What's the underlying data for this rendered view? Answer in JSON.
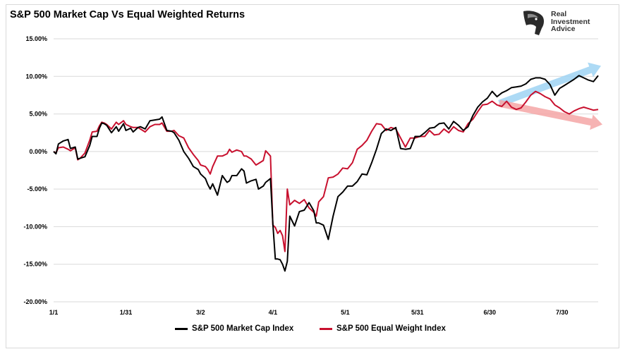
{
  "title": "S&P 500 Market Cap Vs Equal Weighted Returns",
  "logo": {
    "icon": "eagle-head-icon",
    "lines": [
      "Real",
      "Investment",
      "Advice"
    ]
  },
  "colors": {
    "market_cap": "#000000",
    "equal_weight": "#c8102e",
    "up_arrow": "#9fd4f3",
    "down_arrow": "#f4a6a6",
    "grid": "#d9d9d9"
  },
  "chart_data": {
    "type": "line",
    "title": "S&P 500 Market Cap Vs Equal Weighted Returns",
    "ylim": [
      -20,
      15
    ],
    "y_ticks": [
      15,
      10,
      5,
      0,
      -5,
      -10,
      -15,
      -20
    ],
    "y_tick_labels": [
      "15.00%",
      "10.00%",
      "5.00%",
      "0.00%",
      "-5.00%",
      "-10.00%",
      "-15.00%",
      "-20.00%"
    ],
    "x_range": [
      0,
      226
    ],
    "x_ticks": [
      {
        "label": "1/1",
        "day": 0
      },
      {
        "label": "1/31",
        "day": 30
      },
      {
        "label": "3/2",
        "day": 61
      },
      {
        "label": "4/1",
        "day": 91
      },
      {
        "label": "5/1",
        "day": 121
      },
      {
        "label": "5/31",
        "day": 151
      },
      {
        "label": "6/30",
        "day": 181
      },
      {
        "label": "7/30",
        "day": 211
      }
    ],
    "grid": "horizontal",
    "legend_position": "bottom",
    "series": [
      {
        "name": "S&P 500 Market Cap Index",
        "color": "#000000",
        "x": [
          0,
          1,
          2,
          4,
          6,
          7,
          9,
          10,
          11,
          13,
          15,
          16,
          18,
          19,
          20,
          21,
          22,
          24,
          26,
          27,
          29,
          30,
          32,
          33,
          35,
          36,
          38,
          40,
          42,
          44,
          45,
          47,
          49,
          50,
          52,
          54,
          56,
          58,
          60,
          61,
          63,
          64,
          65,
          66,
          68,
          70,
          72,
          73,
          74,
          76,
          78,
          79,
          80,
          82,
          84,
          85,
          87,
          88,
          90,
          91,
          92,
          93,
          94,
          95,
          96,
          97,
          98,
          100,
          102,
          104,
          106,
          108,
          109,
          110,
          112,
          114,
          116,
          118,
          120,
          122,
          124,
          126,
          128,
          130,
          132,
          134,
          136,
          138,
          140,
          142,
          144,
          146,
          148,
          150,
          152,
          154,
          156,
          158,
          160,
          162,
          164,
          166,
          168,
          170,
          172,
          174,
          176,
          178,
          180,
          182,
          184,
          186,
          188,
          190,
          192,
          194,
          196,
          198,
          200,
          202,
          204,
          206,
          208,
          210,
          212,
          214,
          216,
          218,
          220,
          222,
          224,
          226
        ],
        "values": [
          0.0,
          -0.3,
          1.0,
          1.4,
          1.6,
          0.4,
          0.6,
          -1.0,
          -0.9,
          -0.7,
          0.8,
          2.0,
          2.0,
          3.1,
          3.8,
          3.7,
          3.5,
          2.5,
          3.3,
          2.7,
          3.7,
          2.8,
          3.1,
          2.6,
          3.2,
          3.3,
          3.0,
          4.1,
          4.2,
          4.3,
          4.6,
          2.8,
          2.7,
          2.5,
          1.5,
          0.0,
          -0.9,
          -2.0,
          -2.4,
          -3.0,
          -3.6,
          -4.4,
          -5.0,
          -4.3,
          -5.8,
          -3.2,
          -4.1,
          -3.9,
          -3.2,
          -3.2,
          -2.3,
          -2.6,
          -4.2,
          -3.9,
          -3.7,
          -5.0,
          -4.6,
          -4.1,
          -3.6,
          -9.6,
          -14.3,
          -14.3,
          -14.4,
          -15.0,
          -15.9,
          -14.6,
          -8.6,
          -9.9,
          -8.0,
          -7.8,
          -6.8,
          -7.9,
          -9.5,
          -9.5,
          -9.8,
          -11.7,
          -8.6,
          -6.0,
          -5.4,
          -4.6,
          -4.6,
          -4.0,
          -3.0,
          -3.1,
          -1.5,
          0.3,
          2.4,
          3.0,
          2.8,
          3.2,
          0.4,
          0.3,
          0.4,
          2.0,
          2.0,
          2.5,
          3.1,
          3.2,
          3.7,
          3.8,
          3.0,
          4.0,
          3.5,
          2.8,
          3.3,
          4.8,
          5.9,
          6.6,
          7.1,
          8.0,
          7.3,
          7.8,
          8.1,
          8.5,
          8.6,
          8.7,
          9.0,
          9.6,
          9.8,
          9.8,
          9.6,
          8.9,
          7.5,
          8.4,
          8.8,
          9.2,
          9.6,
          10.1,
          9.8,
          9.5,
          9.3,
          10.1
        ]
      },
      {
        "name": "S&P 500 Equal Weight Index",
        "color": "#c8102e",
        "x": [
          0,
          1,
          2,
          4,
          6,
          7,
          9,
          10,
          11,
          13,
          15,
          16,
          18,
          19,
          20,
          21,
          22,
          24,
          26,
          27,
          29,
          30,
          32,
          33,
          35,
          36,
          38,
          40,
          42,
          44,
          45,
          47,
          49,
          50,
          52,
          54,
          56,
          58,
          60,
          61,
          63,
          64,
          65,
          66,
          68,
          70,
          72,
          73,
          74,
          76,
          78,
          79,
          80,
          82,
          84,
          85,
          87,
          88,
          90,
          91,
          92,
          93,
          94,
          95,
          96,
          97,
          98,
          100,
          102,
          104,
          106,
          108,
          109,
          110,
          112,
          114,
          116,
          118,
          120,
          122,
          124,
          126,
          128,
          130,
          132,
          134,
          136,
          138,
          140,
          142,
          144,
          146,
          148,
          150,
          152,
          154,
          156,
          158,
          160,
          162,
          164,
          166,
          168,
          170,
          172,
          174,
          176,
          178,
          180,
          182,
          184,
          186,
          188,
          190,
          192,
          194,
          196,
          198,
          200,
          202,
          204,
          206,
          208,
          210,
          212,
          214,
          216,
          218,
          220,
          222,
          224,
          226
        ],
        "values": [
          0.0,
          -0.2,
          0.5,
          0.6,
          0.3,
          0.1,
          0.5,
          -1.1,
          -0.9,
          -0.2,
          1.5,
          2.6,
          2.7,
          3.4,
          3.9,
          3.8,
          3.6,
          3.0,
          3.9,
          3.6,
          4.1,
          3.6,
          3.3,
          3.2,
          3.2,
          3.0,
          2.6,
          3.3,
          3.6,
          3.6,
          3.8,
          2.7,
          2.7,
          2.8,
          2.1,
          1.8,
          0.5,
          -0.4,
          -1.2,
          -1.8,
          -2.0,
          -2.4,
          -3.0,
          -2.0,
          -0.6,
          -0.6,
          -0.3,
          0.3,
          -0.1,
          0.2,
          0.0,
          -0.6,
          -0.6,
          -1.0,
          -1.8,
          -1.6,
          -1.2,
          0.1,
          -0.6,
          -9.8,
          -10.1,
          -10.9,
          -10.5,
          -11.2,
          -13.3,
          -5.0,
          -7.1,
          -6.5,
          -6.9,
          -6.4,
          -7.5,
          -8.1,
          -8.6,
          -6.7,
          -6.0,
          -3.5,
          -3.4,
          -3.0,
          -2.2,
          -2.3,
          -1.5,
          0.3,
          0.8,
          1.5,
          2.7,
          3.7,
          3.6,
          2.8,
          3.2,
          3.0,
          1.8,
          0.6,
          1.8,
          1.8,
          2.0,
          2.0,
          2.8,
          2.2,
          2.3,
          3.0,
          2.5,
          3.3,
          2.8,
          2.6,
          3.7,
          4.3,
          5.3,
          6.2,
          6.3,
          6.7,
          6.2,
          6.0,
          6.7,
          5.9,
          5.6,
          5.8,
          6.6,
          7.5,
          8.0,
          7.7,
          7.3,
          7.0,
          6.2,
          5.8,
          5.3,
          5.0,
          5.4,
          5.7,
          5.9,
          5.7,
          5.5,
          5.6
        ]
      }
    ],
    "annotations": [
      {
        "shape": "arrow",
        "trend": "up",
        "color": "#9fd4f3"
      },
      {
        "shape": "arrow",
        "trend": "down",
        "color": "#f4a6a6"
      }
    ]
  }
}
